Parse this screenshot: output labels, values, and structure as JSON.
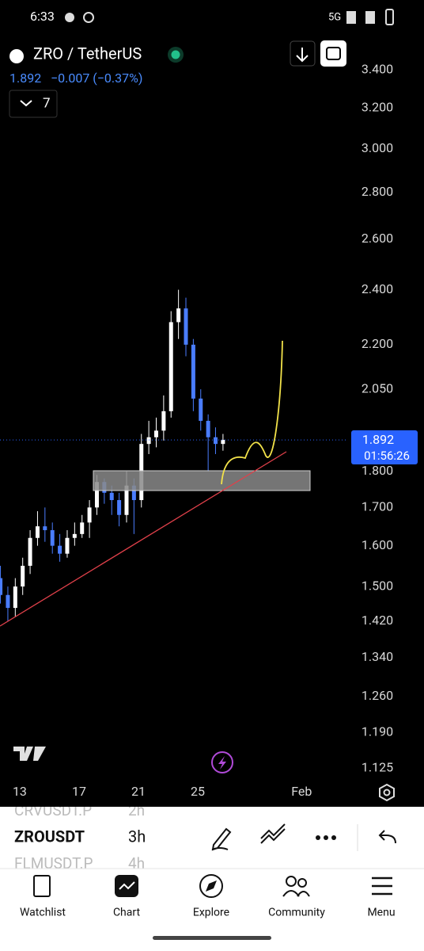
{
  "status_bar": {
    "time": "6:33",
    "network": "5G"
  },
  "header": {
    "symbol": "ZRO / TetherUS",
    "change": "−0.007 (−0.37%)",
    "indicators": 7
  },
  "chart_data": {
    "type": "candlestick",
    "log_scale": true,
    "last_price": 1.892,
    "countdown": "01:56:26",
    "ylim": [
      1.103,
      3.589
    ],
    "yticks": [
      {
        "value": 3.4,
        "label": "3.400"
      },
      {
        "value": 3.2,
        "label": "3.200"
      },
      {
        "value": 3.0,
        "label": "3.000"
      },
      {
        "value": 2.8,
        "label": "2.800"
      },
      {
        "value": 2.6,
        "label": "2.600"
      },
      {
        "value": 2.4,
        "label": "2.400"
      },
      {
        "value": 2.2,
        "label": "2.200"
      },
      {
        "value": 2.05,
        "label": "2.050"
      },
      {
        "value": 1.8,
        "label": "1.800"
      },
      {
        "value": 1.7,
        "label": "1.700"
      },
      {
        "value": 1.6,
        "label": "1.600"
      },
      {
        "value": 1.5,
        "label": "1.500"
      },
      {
        "value": 1.42,
        "label": "1.420"
      },
      {
        "value": 1.34,
        "label": "1.340"
      },
      {
        "value": 1.26,
        "label": "1.260"
      },
      {
        "value": 1.19,
        "label": "1.190"
      },
      {
        "value": 1.125,
        "label": "1.125"
      }
    ],
    "xlim": [
      11.67,
      35.13
    ],
    "xticks": [
      13,
      17,
      21,
      25,
      {
        "value": 32,
        "label": "Feb"
      }
    ],
    "up_color": "#ffffff",
    "down_color": "#4a7dff",
    "x": [
      11.7,
      12.2,
      12.7,
      13.2,
      13.7,
      14.2,
      14.7,
      15.2,
      15.7,
      16.2,
      16.7,
      17.2,
      17.7,
      18.2,
      18.7,
      19.2,
      19.7,
      20.2,
      20.7,
      21.2,
      21.7,
      22.2,
      22.7,
      23.2,
      23.7,
      24.2,
      24.7,
      25.2,
      25.7,
      26.2,
      26.7
    ],
    "open": [
      1.52,
      1.48,
      1.45,
      1.5,
      1.55,
      1.62,
      1.65,
      1.64,
      1.6,
      1.58,
      1.62,
      1.63,
      1.66,
      1.7,
      1.77,
      1.74,
      1.72,
      1.68,
      1.76,
      1.72,
      1.88,
      1.9,
      1.92,
      1.98,
      2.28,
      2.33,
      2.2,
      2.02,
      1.95,
      1.9,
      1.88
    ],
    "high": [
      1.55,
      1.5,
      1.52,
      1.57,
      1.64,
      1.69,
      1.7,
      1.66,
      1.63,
      1.64,
      1.66,
      1.68,
      1.72,
      1.79,
      1.78,
      1.76,
      1.74,
      1.8,
      1.78,
      1.91,
      1.95,
      1.96,
      2.03,
      2.32,
      2.4,
      2.37,
      2.22,
      2.05,
      1.97,
      1.93,
      1.91
    ],
    "low": [
      1.46,
      1.42,
      1.43,
      1.48,
      1.53,
      1.6,
      1.61,
      1.58,
      1.56,
      1.57,
      1.6,
      1.62,
      1.62,
      1.68,
      1.71,
      1.68,
      1.65,
      1.66,
      1.63,
      1.7,
      1.85,
      1.87,
      1.89,
      1.96,
      2.22,
      2.16,
      1.98,
      1.92,
      1.8,
      1.85,
      1.86
    ],
    "close": [
      1.48,
      1.45,
      1.5,
      1.55,
      1.62,
      1.65,
      1.64,
      1.6,
      1.58,
      1.62,
      1.63,
      1.66,
      1.7,
      1.77,
      1.74,
      1.72,
      1.68,
      1.76,
      1.72,
      1.88,
      1.9,
      1.92,
      1.98,
      2.28,
      2.33,
      2.2,
      2.02,
      1.95,
      1.9,
      1.88,
      1.892
    ]
  },
  "watchlist": [
    {
      "symbol": "CRVUSDT.P",
      "interval": "2h"
    },
    {
      "symbol": "ZROUSDT",
      "interval": "3h"
    },
    {
      "symbol": "FLMUSDT.P",
      "interval": "4h"
    }
  ],
  "nav": [
    "Watchlist",
    "Chart",
    "Explore",
    "Community",
    "Menu"
  ]
}
